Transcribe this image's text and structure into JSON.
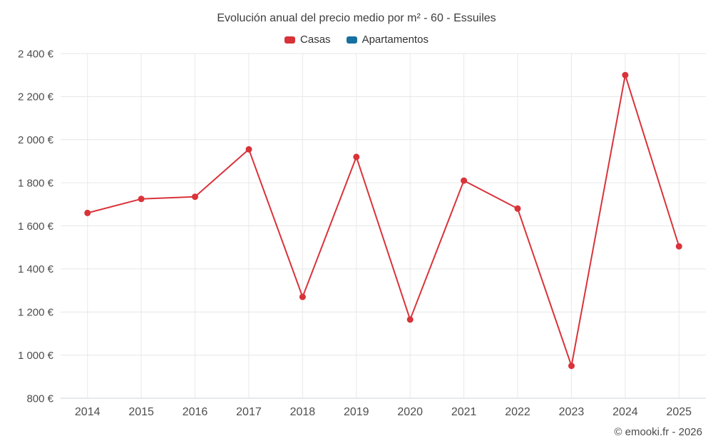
{
  "chart": {
    "title": "Evolución anual del precio medio por m² - 60 - Essuiles",
    "footer_credit": "© emooki.fr - 2026"
  },
  "legend": {
    "items": [
      {
        "label": "Casas",
        "color": "#d9333a"
      },
      {
        "label": "Apartamentos",
        "color": "#1670a0"
      }
    ]
  },
  "chart_data": {
    "type": "line",
    "title": "Evolución anual del precio medio por m² - 60 - Essuiles",
    "categories": [
      "2014",
      "2015",
      "2016",
      "2017",
      "2018",
      "2019",
      "2020",
      "2021",
      "2022",
      "2023",
      "2024",
      "2025"
    ],
    "series": [
      {
        "name": "Casas",
        "color": "#d9333a",
        "values": [
          1660,
          1725,
          1735,
          1955,
          1270,
          1920,
          1165,
          1810,
          1680,
          950,
          2300,
          1505
        ]
      },
      {
        "name": "Apartamentos",
        "color": "#1670a0",
        "values": []
      }
    ],
    "xlabel": "",
    "ylabel": "",
    "ylim": [
      800,
      2400
    ],
    "ytick_step": 200,
    "ytick_suffix": "€",
    "grid": true,
    "legend_position": "top",
    "marker": "circle"
  }
}
